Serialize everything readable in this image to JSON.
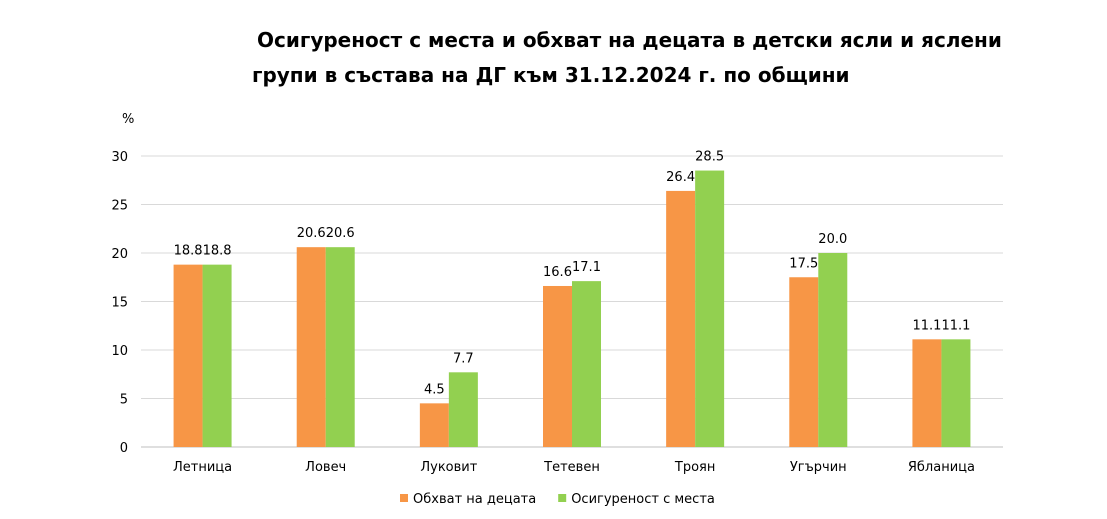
{
  "chart_data": {
    "type": "bar",
    "title_line1": "Осигуреност с места и обхват на децата в детски ясли и яслени",
    "title_line2": "групи в състава на ДГ към 31.12.2024 г. по общини",
    "ylabel": "%",
    "ylim": [
      0,
      30
    ],
    "yticks": [
      0,
      5,
      10,
      15,
      20,
      25,
      30
    ],
    "grid": true,
    "legend_position": "bottom",
    "categories": [
      "Летница",
      "Ловеч",
      "Луковит",
      "Тетевен",
      "Троян",
      "Угърчин",
      "Ябланица"
    ],
    "series": [
      {
        "name": "Обхват на децата",
        "color": "#F79646",
        "values": [
          18.8,
          20.6,
          4.5,
          16.6,
          26.4,
          17.5,
          11.1
        ]
      },
      {
        "name": "Осигуреност с места",
        "color": "#92D050",
        "values": [
          18.8,
          20.6,
          7.7,
          17.1,
          28.5,
          20.0,
          11.1
        ]
      }
    ]
  }
}
